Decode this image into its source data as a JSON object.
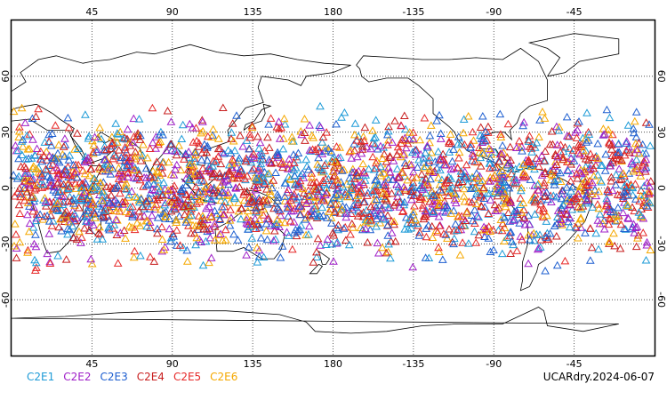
{
  "map": {
    "projection": "cylindrical equidistant",
    "center_longitude": 180,
    "lon_range": [
      0,
      360
    ],
    "lat_range": [
      -90,
      90
    ],
    "lon_ticks": [
      "45",
      "90",
      "135",
      "180",
      "-135",
      "-90",
      "-45"
    ],
    "lat_ticks": [
      "60",
      "30",
      "0",
      "-30",
      "-60"
    ],
    "marker": "open triangle",
    "grid": "dotted",
    "coastlines": true
  },
  "legend": {
    "items": [
      {
        "label": "C2E1",
        "color": "#1e9bd7"
      },
      {
        "label": "C2E2",
        "color": "#a020c8"
      },
      {
        "label": "C2E3",
        "color": "#1e5fd0"
      },
      {
        "label": "C2E4",
        "color": "#c81e1e"
      },
      {
        "label": "C2E5",
        "color": "#e62828"
      },
      {
        "label": "C2E6",
        "color": "#f5a800"
      }
    ]
  },
  "product_stamp": "UCARdry.2024-06-07"
}
